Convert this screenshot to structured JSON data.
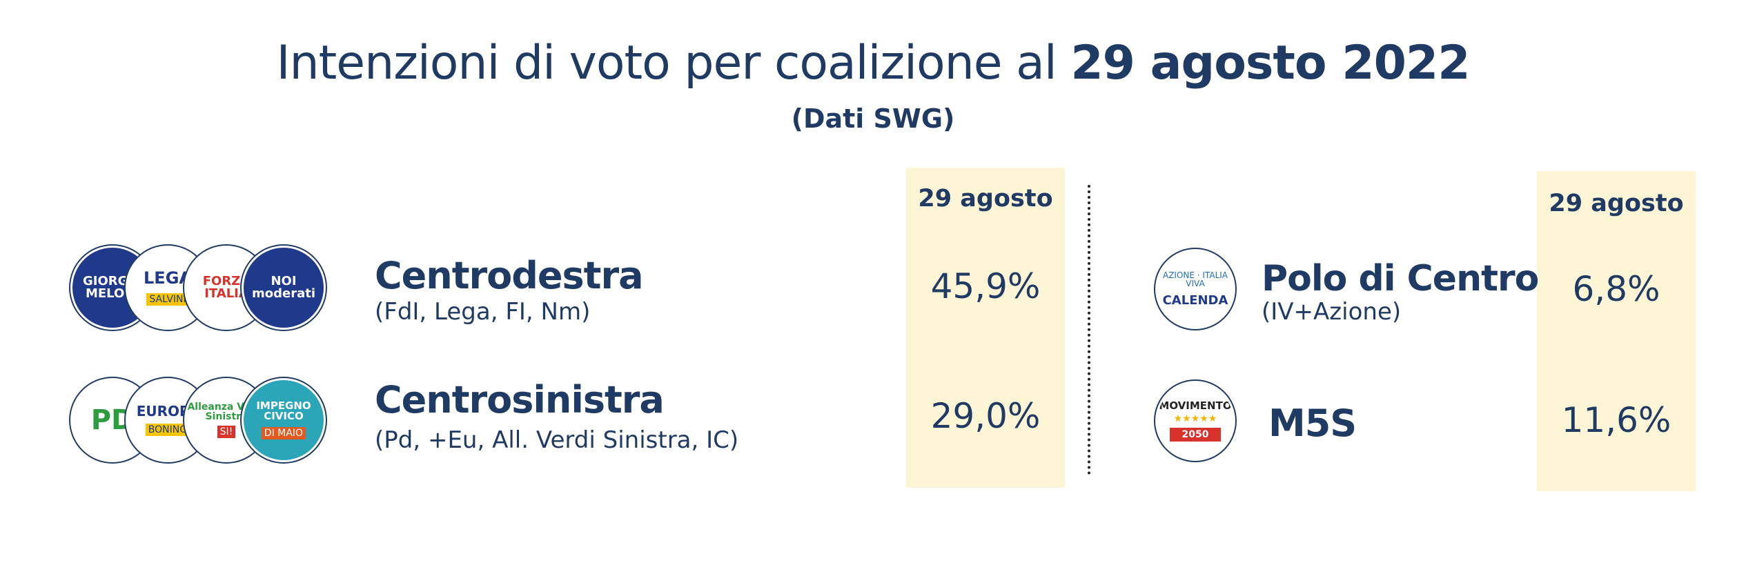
{
  "header": {
    "title_main": "Intenzioni di voto per coalizione al ",
    "title_date": "29 agosto 2022",
    "subtitle": "(Dati SWG)"
  },
  "colors": {
    "text": "#1f3a63",
    "column_bg": "#fdf5d5"
  },
  "left_table": {
    "column_header": "29 agosto",
    "rows": [
      {
        "name": "Centrodestra",
        "parties": "(FdI, Lega, FI, Nm)",
        "value_label": "45,9%",
        "logos": [
          {
            "icon": "fratelli-ditalia-logo",
            "text": "GIORGIA MELONI"
          },
          {
            "icon": "lega-logo",
            "text": "LEGA"
          },
          {
            "icon": "forza-italia-logo",
            "text": "FORZA ITALIA"
          },
          {
            "icon": "noi-moderati-logo",
            "text": "NOI moderati"
          }
        ]
      },
      {
        "name": "Centrosinistra",
        "parties": "(Pd, +Eu, All. Verdi Sinistra, IC)",
        "value_label": "29,0%",
        "logos": [
          {
            "icon": "pd-logo",
            "text": "PD"
          },
          {
            "icon": "piu-europa-logo",
            "text": "EUROPA"
          },
          {
            "icon": "alleanza-verdi-sinistra-logo",
            "text": "Alleanza Verdi Sinistra"
          },
          {
            "icon": "impegno-civico-logo",
            "text": "IMPEGNO CIVICO"
          }
        ]
      }
    ]
  },
  "right_table": {
    "column_header": "29 agosto",
    "rows": [
      {
        "name": "Polo di Centro",
        "parties": "(IV+Azione)",
        "value_label": "6,8%",
        "logos": [
          {
            "icon": "calenda-logo",
            "text": "CALENDA"
          }
        ]
      },
      {
        "name": "M5S",
        "parties": "",
        "value_label": "11,6%",
        "logos": [
          {
            "icon": "movimento-5-stelle-logo",
            "text": "MOVIMENTO"
          }
        ]
      }
    ]
  },
  "chart_data": {
    "type": "table",
    "title": "Intenzioni di voto per coalizione al 29 agosto 2022",
    "subtitle": "(Dati SWG)",
    "columns": [
      "29 agosto"
    ],
    "categories": [
      "Centrodestra",
      "Centrosinistra",
      "Polo di Centro",
      "M5S"
    ],
    "values": [
      45.9,
      29.0,
      6.8,
      11.6
    ]
  }
}
